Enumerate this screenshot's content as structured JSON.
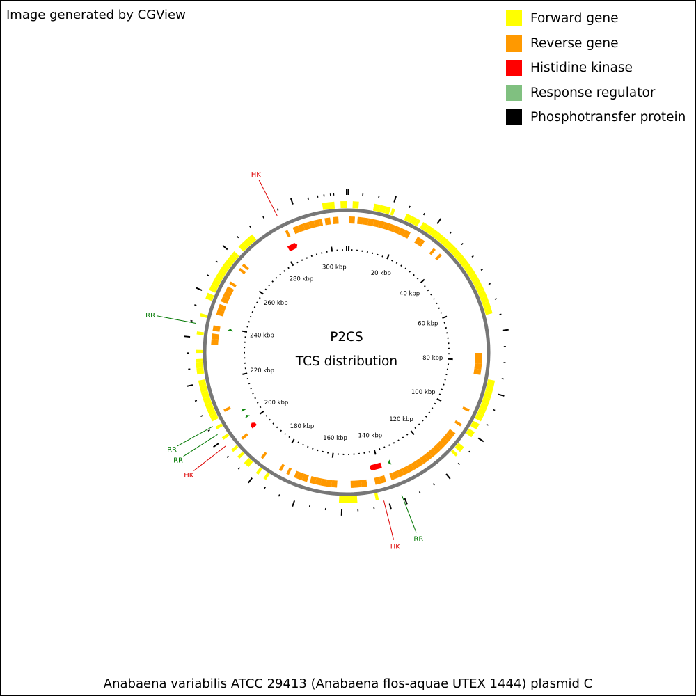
{
  "header": {
    "text": "Image generated by CGView"
  },
  "legend": [
    {
      "label": "Forward gene",
      "color": "#ffff00"
    },
    {
      "label": "Reverse gene",
      "color": "#ff9900"
    },
    {
      "label": "Histidine kinase",
      "color": "#ff0000"
    },
    {
      "label": "Response regulator",
      "color": "#80c080"
    },
    {
      "label": "Phosphotransfer protein",
      "color": "#000000"
    }
  ],
  "center": {
    "line1": "P2CS",
    "line2": "TCS distribution"
  },
  "footer": {
    "text": "Anabaena variabilis ATCC 29413 (Anabaena flos-aquae UTEX 1444) plasmid C"
  },
  "map": {
    "genome_length_kbp": 307,
    "kbp_labels": [
      {
        "pos": 300,
        "text": "300 kbp"
      },
      {
        "pos": 20,
        "text": "20 kbp"
      },
      {
        "pos": 40,
        "text": "40 kbp"
      },
      {
        "pos": 60,
        "text": "60 kbp"
      },
      {
        "pos": 80,
        "text": "80 kbp"
      },
      {
        "pos": 100,
        "text": "100 kbp"
      },
      {
        "pos": 120,
        "text": "120 kbp"
      },
      {
        "pos": 140,
        "text": "140 kbp"
      },
      {
        "pos": 160,
        "text": "160 kbp"
      },
      {
        "pos": 180,
        "text": "180 kbp"
      },
      {
        "pos": 200,
        "text": "200 kbp"
      },
      {
        "pos": 220,
        "text": "220 kbp"
      },
      {
        "pos": 240,
        "text": "240 kbp"
      },
      {
        "pos": 260,
        "text": "260 kbp"
      },
      {
        "pos": 280,
        "text": "280 kbp"
      }
    ],
    "forward_genes": [
      [
        -8,
        -4
      ],
      [
        -2,
        0
      ],
      [
        2,
        4
      ],
      [
        9,
        11
      ],
      [
        11,
        13
      ],
      [
        13,
        14.5
      ],
      [
        15,
        16
      ],
      [
        20,
        22
      ],
      [
        22,
        24
      ],
      [
        24,
        25
      ],
      [
        26,
        28
      ],
      [
        28,
        30
      ],
      [
        30,
        32
      ],
      [
        32,
        34
      ],
      [
        34,
        36
      ],
      [
        36,
        38
      ],
      [
        38,
        40
      ],
      [
        40,
        42
      ],
      [
        42,
        44
      ],
      [
        44,
        46
      ],
      [
        46,
        48
      ],
      [
        48,
        50
      ],
      [
        50,
        52
      ],
      [
        52,
        54
      ],
      [
        54,
        56
      ],
      [
        56,
        58
      ],
      [
        58,
        60
      ],
      [
        60,
        62
      ],
      [
        62,
        64
      ],
      [
        86,
        88
      ],
      [
        88,
        90
      ],
      [
        90,
        92
      ],
      [
        92,
        94
      ],
      [
        94,
        96
      ],
      [
        96,
        98
      ],
      [
        98,
        100
      ],
      [
        101,
        103
      ],
      [
        104,
        106
      ],
      [
        110,
        112
      ],
      [
        113,
        114
      ],
      [
        143,
        144
      ],
      [
        150,
        154
      ],
      [
        154,
        156
      ],
      [
        181,
        182
      ],
      [
        184,
        185
      ],
      [
        188,
        190
      ],
      [
        192,
        193
      ],
      [
        195,
        196
      ],
      [
        200,
        201
      ],
      [
        204,
        205
      ],
      [
        207,
        209
      ],
      [
        209,
        211
      ],
      [
        211,
        213
      ],
      [
        213,
        215
      ],
      [
        215,
        217
      ],
      [
        217,
        219
      ],
      [
        219,
        221
      ],
      [
        223,
        225
      ],
      [
        225,
        227
      ],
      [
        227,
        228
      ],
      [
        230,
        231
      ],
      [
        236,
        237
      ],
      [
        242,
        243
      ],
      [
        248,
        250
      ],
      [
        251,
        253
      ],
      [
        253,
        255
      ],
      [
        255,
        257
      ],
      [
        257,
        259
      ],
      [
        259,
        261
      ],
      [
        261,
        263
      ],
      [
        263,
        265
      ],
      [
        265,
        266
      ],
      [
        268,
        270
      ],
      [
        270,
        272
      ],
      [
        272,
        274
      ]
    ],
    "reverse_genes": [
      [
        -20,
        -18
      ],
      [
        -18,
        -16
      ],
      [
        -16,
        -14
      ],
      [
        -14,
        -12
      ],
      [
        -12,
        -10
      ],
      [
        -10,
        -9
      ],
      [
        -8,
        -6
      ],
      [
        -5,
        -3
      ],
      [
        1,
        3
      ],
      [
        4,
        6
      ],
      [
        6,
        8
      ],
      [
        8,
        10
      ],
      [
        10,
        12
      ],
      [
        12,
        14
      ],
      [
        14,
        16
      ],
      [
        16,
        18
      ],
      [
        18,
        20
      ],
      [
        20,
        22
      ],
      [
        22,
        24
      ],
      [
        27,
        29
      ],
      [
        29,
        30
      ],
      [
        34,
        35
      ],
      [
        37,
        38
      ],
      [
        77,
        79
      ],
      [
        79,
        81
      ],
      [
        81,
        83
      ],
      [
        83,
        85
      ],
      [
        98,
        99
      ],
      [
        104,
        105
      ],
      [
        108,
        110
      ],
      [
        110,
        112
      ],
      [
        112,
        114
      ],
      [
        114,
        116
      ],
      [
        116,
        118
      ],
      [
        118,
        120
      ],
      [
        120,
        122
      ],
      [
        122,
        124
      ],
      [
        124,
        126
      ],
      [
        126,
        128
      ],
      [
        128,
        130
      ],
      [
        130,
        132
      ],
      [
        132,
        134
      ],
      [
        134,
        136
      ],
      [
        136,
        137
      ],
      [
        139,
        141
      ],
      [
        141,
        143
      ],
      [
        146,
        148
      ],
      [
        148,
        150
      ],
      [
        150,
        152
      ],
      [
        157,
        159
      ],
      [
        159,
        161
      ],
      [
        161,
        163
      ],
      [
        163,
        165
      ],
      [
        165,
        167
      ],
      [
        168,
        170
      ],
      [
        170,
        172
      ],
      [
        172,
        173
      ],
      [
        175,
        176
      ],
      [
        178,
        179
      ],
      [
        186,
        187
      ],
      [
        196,
        197
      ],
      [
        208,
        209
      ],
      [
        233,
        235
      ],
      [
        235,
        237
      ],
      [
        238,
        240
      ],
      [
        244,
        246
      ],
      [
        246,
        248
      ],
      [
        249,
        251
      ],
      [
        251,
        253
      ],
      [
        253,
        255
      ],
      [
        256,
        257
      ],
      [
        262,
        263
      ],
      [
        264,
        265
      ],
      [
        284,
        285
      ]
    ],
    "histidine_kinases": [
      [
        139,
        144
      ],
      [
        282,
        286
      ],
      [
        197,
        199
      ]
    ],
    "response_regulators": [
      [
        135,
        136
      ],
      [
        202,
        203
      ],
      [
        205,
        206
      ],
      [
        239,
        240
      ]
    ],
    "outer_ticks": [
      [
        -12,
        "s"
      ],
      [
        -7,
        "s"
      ],
      [
        -4,
        "s"
      ],
      [
        0,
        "l"
      ],
      [
        0.5,
        "l"
      ],
      [
        5,
        "s"
      ],
      [
        10,
        "s"
      ],
      [
        15,
        "l"
      ],
      [
        20,
        "s"
      ],
      [
        25,
        "s"
      ],
      [
        30,
        "l"
      ],
      [
        35,
        "s"
      ],
      [
        40,
        "s"
      ],
      [
        45,
        "s"
      ],
      [
        50,
        "s"
      ],
      [
        55,
        "s"
      ],
      [
        60,
        "s"
      ],
      [
        65,
        "s"
      ],
      [
        70,
        "l"
      ],
      [
        75,
        "s"
      ],
      [
        80,
        "s"
      ],
      [
        85,
        "s"
      ],
      [
        90,
        "l"
      ],
      [
        95,
        "s"
      ],
      [
        100,
        "s"
      ],
      [
        105,
        "l"
      ],
      [
        110,
        "s"
      ],
      [
        115,
        "s"
      ],
      [
        120,
        "l"
      ],
      [
        125,
        "s"
      ],
      [
        130,
        "s"
      ],
      [
        135,
        "l"
      ],
      [
        140,
        "l"
      ],
      [
        145,
        "s"
      ],
      [
        150,
        "s"
      ],
      [
        155,
        "l"
      ],
      [
        160,
        "s"
      ],
      [
        165,
        "s"
      ],
      [
        170,
        "l"
      ],
      [
        175,
        "s"
      ],
      [
        180,
        "s"
      ],
      [
        185,
        "l"
      ],
      [
        190,
        "s"
      ],
      [
        195,
        "s"
      ],
      [
        200,
        "l"
      ],
      [
        205,
        "s"
      ],
      [
        210,
        "s"
      ],
      [
        215,
        "s"
      ],
      [
        220,
        "l"
      ],
      [
        225,
        "s"
      ],
      [
        230,
        "s"
      ],
      [
        235,
        "l"
      ],
      [
        240,
        "s"
      ],
      [
        245,
        "s"
      ],
      [
        250,
        "l"
      ],
      [
        255,
        "s"
      ],
      [
        260,
        "s"
      ],
      [
        265,
        "l"
      ],
      [
        270,
        "s"
      ],
      [
        275,
        "s"
      ],
      [
        280,
        "s"
      ],
      [
        285,
        "s"
      ],
      [
        290,
        "l"
      ],
      [
        295,
        "s"
      ],
      [
        298,
        "s"
      ],
      [
        302,
        "s"
      ]
    ],
    "annotations": [
      {
        "text": "HK",
        "color": "#dd0000",
        "pos": 284
      },
      {
        "text": "RR",
        "color": "#007700",
        "pos": 239.5
      },
      {
        "text": "RR",
        "color": "#007700",
        "pos": 205.5
      },
      {
        "text": "RR",
        "color": "#007700",
        "pos": 202.5
      },
      {
        "text": "HK",
        "color": "#dd0000",
        "pos": 198
      },
      {
        "text": "HK",
        "color": "#dd0000",
        "pos": 141.5
      },
      {
        "text": "RR",
        "color": "#007700",
        "pos": 135.5
      }
    ]
  }
}
